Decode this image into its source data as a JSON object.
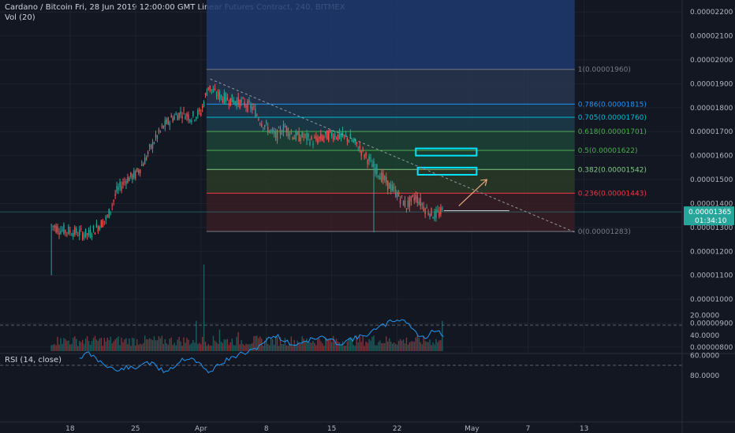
{
  "header": {
    "title": "Cardano / Bitcoin Fri, 28 Jun 2019 12:00:00 GMT Linear Futures Contract, 240, BITMEX",
    "vol_label": "Vol (20)",
    "rsi_label": "RSI (14, close)"
  },
  "price_badge": {
    "value": "0.00001365",
    "countdown": "01:34:10"
  },
  "colors": {
    "background": "#131722",
    "up": "#26a69a",
    "down": "#ef5350",
    "fib_1": "#787b86",
    "fib_786": "#2196f3",
    "fib_705": "#00bcd4",
    "fib_618": "#4caf50",
    "fib_5": "#4caf50",
    "fib_382": "#81c784",
    "fib_236": "#f23645",
    "fib_0": "#787b86",
    "rsi": "#2196f3",
    "box": "#00e5ff"
  },
  "chart_data": [
    {
      "type": "line",
      "name": "price",
      "ylim": [
        7.8e-06,
        2.25e-05
      ],
      "y_ticks": [
        "0.00002200",
        "0.00002100",
        "0.00002000",
        "0.00001900",
        "0.00001800",
        "0.00001700",
        "0.00001600",
        "0.00001500",
        "0.00001400",
        "0.00001300",
        "0.00001200",
        "0.00001100",
        "0.00001000",
        "0.00000900",
        "0.00000800"
      ],
      "y_tick_values": [
        2.2e-05,
        2.1e-05,
        2e-05,
        1.9e-05,
        1.8e-05,
        1.7e-05,
        1.6e-05,
        1.5e-05,
        1.4e-05,
        1.3e-05,
        1.2e-05,
        1.1e-05,
        1e-05,
        9e-06,
        8e-06
      ],
      "x_ticks": [
        "18",
        "25",
        "Apr",
        "8",
        "15",
        "22",
        "May",
        "7",
        "13"
      ],
      "x_tick_days": [
        18,
        25,
        32,
        39,
        46,
        53,
        61,
        67,
        73
      ],
      "xlim": [
        10.5,
        83.5
      ],
      "key_points": [
        [
          16,
          1.31e-05
        ],
        [
          17,
          1.29e-05
        ],
        [
          18.5,
          1.28e-05
        ],
        [
          20,
          1.27e-05
        ],
        [
          22,
          1.34e-05
        ],
        [
          23,
          1.45e-05
        ],
        [
          24,
          1.5e-05
        ],
        [
          25,
          1.52e-05
        ],
        [
          26,
          1.58e-05
        ],
        [
          27,
          1.66e-05
        ],
        [
          28,
          1.72e-05
        ],
        [
          29,
          1.76e-05
        ],
        [
          30,
          1.78e-05
        ],
        [
          31,
          1.76e-05
        ],
        [
          32,
          1.78e-05
        ],
        [
          32.8,
          1.89e-05
        ],
        [
          33.5,
          1.86e-05
        ],
        [
          34.5,
          1.84e-05
        ],
        [
          35.5,
          1.83e-05
        ],
        [
          36.5,
          1.82e-05
        ],
        [
          37.5,
          1.8e-05
        ],
        [
          38.5,
          1.74e-05
        ],
        [
          40,
          1.68e-05
        ],
        [
          41,
          1.72e-05
        ],
        [
          42,
          1.68e-05
        ],
        [
          43,
          1.68e-05
        ],
        [
          44,
          1.66e-05
        ],
        [
          46,
          1.69e-05
        ],
        [
          48,
          1.67e-05
        ],
        [
          49,
          1.63e-05
        ],
        [
          50,
          1.58e-05
        ],
        [
          51,
          1.53e-05
        ],
        [
          52,
          1.48e-05
        ],
        [
          53,
          1.44e-05
        ],
        [
          54,
          1.39e-05
        ],
        [
          55,
          1.43e-05
        ],
        [
          56,
          1.38e-05
        ],
        [
          57,
          1.35e-05
        ],
        [
          58,
          1.37e-05
        ]
      ],
      "low_spikes": [
        [
          16,
          1.1e-05
        ],
        [
          50.5,
          1.28e-05
        ]
      ],
      "current_price": 1.365e-05
    },
    {
      "type": "fibonacci",
      "levels": [
        {
          "label": "1(0.00001960)",
          "value": 1.96e-05,
          "color": "#787b86"
        },
        {
          "label": "0.786(0.00001815)",
          "value": 1.815e-05,
          "color": "#2196f3"
        },
        {
          "label": "0.705(0.00001760)",
          "value": 1.76e-05,
          "color": "#00bcd4"
        },
        {
          "label": "0.618(0.00001701)",
          "value": 1.701e-05,
          "color": "#4caf50"
        },
        {
          "label": "0.5(0.00001622)",
          "value": 1.622e-05,
          "color": "#4caf50"
        },
        {
          "label": "0.382(0.00001542)",
          "value": 1.542e-05,
          "color": "#81c784"
        },
        {
          "label": "0.236(0.00001443)",
          "value": 1.443e-05,
          "color": "#f23645"
        },
        {
          "label": "0(0.00001283)",
          "value": 1.283e-05,
          "color": "#787b86"
        }
      ],
      "start_day": 32.6,
      "end_day": 72,
      "target_boxes": [
        {
          "from": 1.6e-05,
          "to": 1.63e-05,
          "start_day": 55,
          "end_day": 61.5
        },
        {
          "from": 1.52e-05,
          "to": 1.55e-05,
          "start_day": 55.2,
          "end_day": 61.5
        }
      ]
    },
    {
      "type": "bar",
      "name": "Vol (20)",
      "spikes": [
        [
          17,
          0.15
        ],
        [
          32.4,
          1.0
        ],
        [
          31.5,
          0.35
        ],
        [
          58,
          0.55
        ],
        [
          58.6,
          0.35
        ],
        [
          34,
          0.25
        ],
        [
          36,
          0.22
        ],
        [
          50.5,
          0.18
        ]
      ]
    },
    {
      "type": "line",
      "name": "RSI (14, close)",
      "ylim": [
        20,
        80
      ],
      "y_ticks": [
        "80.0000",
        "60.0000",
        "40.0000",
        "20.0000"
      ],
      "y_tick_values": [
        80,
        60,
        40,
        20
      ],
      "bands": [
        70,
        30
      ],
      "key_points": [
        [
          19,
          62
        ],
        [
          20,
          58
        ],
        [
          21,
          65
        ],
        [
          22,
          70
        ],
        [
          23,
          76
        ],
        [
          24,
          72
        ],
        [
          25,
          74
        ],
        [
          26,
          66
        ],
        [
          27,
          70
        ],
        [
          28,
          76
        ],
        [
          29,
          72
        ],
        [
          30,
          64
        ],
        [
          31,
          62
        ],
        [
          32,
          70
        ],
        [
          32.8,
          78
        ],
        [
          33.5,
          72
        ],
        [
          34.5,
          66
        ],
        [
          35.5,
          62
        ],
        [
          36.5,
          58
        ],
        [
          37.5,
          56
        ],
        [
          38.5,
          48
        ],
        [
          40,
          40
        ],
        [
          41,
          46
        ],
        [
          42,
          50
        ],
        [
          43,
          46
        ],
        [
          44,
          44
        ],
        [
          45,
          42
        ],
        [
          46,
          46
        ],
        [
          47,
          48
        ],
        [
          48,
          44
        ],
        [
          49,
          42
        ],
        [
          50,
          38
        ],
        [
          51,
          33
        ],
        [
          52,
          28
        ],
        [
          53,
          24
        ],
        [
          54,
          26
        ],
        [
          55,
          38
        ],
        [
          56,
          44
        ],
        [
          56.7,
          34
        ],
        [
          57.5,
          37
        ],
        [
          58.2,
          42
        ]
      ]
    }
  ]
}
